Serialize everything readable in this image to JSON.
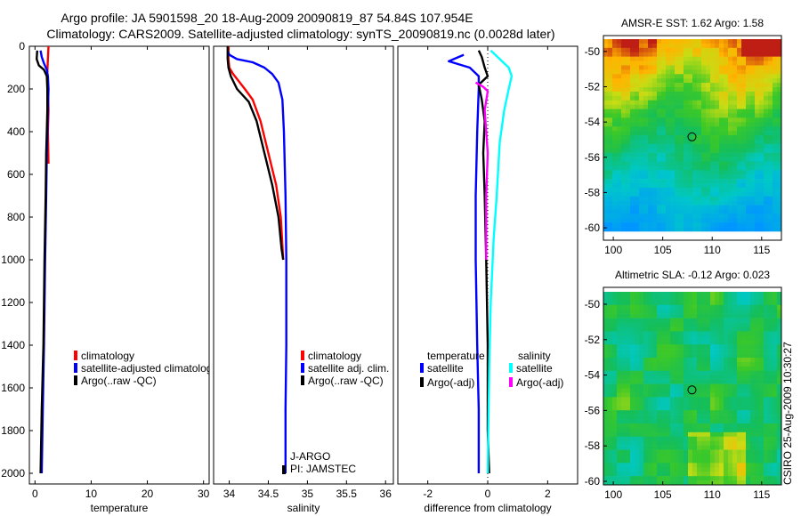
{
  "header": {
    "line1": "Argo profile: JA 5901598_20 18-Aug-2009 20090819_87 54.84S 107.954E",
    "line2": "Climatology: CARS2009. Satellite-adjusted climatology: synTS_20090819.nc (0.0028d later)"
  },
  "colors": {
    "climatology": "#ff0000",
    "satellite": "#0000ff",
    "argo": "#000000",
    "satellite_salinity": "#00ffff",
    "argo_salinity": "#ff00ff",
    "marker": "#000000"
  },
  "credit": "CSIRO 25-Aug-2009 10:30:27",
  "chart_data": [
    {
      "id": "temperature",
      "type": "line",
      "xlabel": "temperature",
      "ylabel": "",
      "xlim": [
        -1,
        31
      ],
      "ylim": [
        0,
        2050
      ],
      "y_inverted": true,
      "xticks": [
        0,
        10,
        20,
        30
      ],
      "xtick_labels": [
        "0",
        "10",
        "20",
        "30"
      ],
      "yticks": [
        0,
        200,
        400,
        600,
        800,
        1000,
        1200,
        1400,
        1600,
        1800,
        2000
      ],
      "ytick_labels": [
        "0",
        "200",
        "400",
        "600",
        "800",
        "1000",
        "1200",
        "1400",
        "1600",
        "1800",
        "2000"
      ],
      "legend": [
        "climatology",
        "satellite-adjusted climatology",
        "Argo(..raw -QC)"
      ],
      "series": [
        {
          "name": "climatology",
          "color": "#ff0000",
          "points": [
            [
              2.4,
              0
            ],
            [
              2.3,
              60
            ],
            [
              2.2,
              120
            ],
            [
              2.3,
              200
            ],
            [
              2.4,
              300
            ],
            [
              2.3,
              400
            ],
            [
              2.4,
              550
            ]
          ]
        },
        {
          "name": "satellite-adjusted climatology",
          "color": "#0000ff",
          "points": [
            [
              1.0,
              20
            ],
            [
              1.2,
              50
            ],
            [
              1.6,
              80
            ],
            [
              2.1,
              110
            ],
            [
              2.3,
              140
            ],
            [
              2.4,
              200
            ],
            [
              2.3,
              300
            ],
            [
              2.2,
              400
            ],
            [
              2.1,
              500
            ],
            [
              2.0,
              700
            ],
            [
              1.8,
              1000
            ],
            [
              1.6,
              1400
            ],
            [
              1.4,
              1700
            ],
            [
              1.2,
              2000
            ]
          ]
        },
        {
          "name": "Argo(..raw -QC)",
          "color": "#000000",
          "points": [
            [
              0.4,
              20
            ],
            [
              0.3,
              60
            ],
            [
              0.7,
              90
            ],
            [
              1.6,
              110
            ],
            [
              2.1,
              140
            ],
            [
              2.2,
              200
            ],
            [
              2.2,
              300
            ],
            [
              2.1,
              400
            ],
            [
              2.0,
              500
            ],
            [
              1.9,
              700
            ],
            [
              1.7,
              1000
            ],
            [
              1.5,
              1400
            ],
            [
              1.2,
              1700
            ],
            [
              1.0,
              2000
            ]
          ]
        }
      ]
    },
    {
      "id": "salinity",
      "type": "line",
      "xlabel": "salinity",
      "ylabel": "",
      "xlim": [
        33.8,
        36.1
      ],
      "ylim": [
        0,
        2050
      ],
      "y_inverted": true,
      "xticks": [
        34,
        34.5,
        35,
        35.5,
        36
      ],
      "xtick_labels": [
        "34",
        "34.5",
        "35",
        "35.5",
        "36"
      ],
      "legend": [
        "climatology",
        "satellite adj. clim.",
        "Argo(..raw -QC)"
      ],
      "annotation": [
        "J-ARGO",
        "PI: JAMSTEC"
      ],
      "series": [
        {
          "name": "climatology",
          "color": "#ff0000",
          "points": [
            [
              33.99,
              0
            ],
            [
              33.99,
              60
            ],
            [
              34.0,
              100
            ],
            [
              34.05,
              130
            ],
            [
              34.2,
              200
            ],
            [
              34.3,
              250
            ],
            [
              34.4,
              350
            ],
            [
              34.5,
              500
            ],
            [
              34.6,
              650
            ],
            [
              34.66,
              800
            ],
            [
              34.69,
              1000
            ]
          ]
        },
        {
          "name": "satellite adj. clim.",
          "color": "#0000ff",
          "points": [
            [
              33.98,
              20
            ],
            [
              34.0,
              40
            ],
            [
              34.1,
              60
            ],
            [
              34.3,
              75
            ],
            [
              34.45,
              100
            ],
            [
              34.55,
              130
            ],
            [
              34.63,
              170
            ],
            [
              34.68,
              250
            ],
            [
              34.7,
              400
            ],
            [
              34.72,
              700
            ],
            [
              34.73,
              1000
            ],
            [
              34.73,
              1400
            ],
            [
              34.72,
              1700
            ],
            [
              34.72,
              2000
            ]
          ]
        },
        {
          "name": "Argo(..raw -QC)",
          "color": "#000000",
          "points": [
            [
              33.98,
              0
            ],
            [
              33.98,
              60
            ],
            [
              33.99,
              100
            ],
            [
              34.02,
              140
            ],
            [
              34.1,
              200
            ],
            [
              34.25,
              260
            ],
            [
              34.35,
              350
            ],
            [
              34.45,
              500
            ],
            [
              34.55,
              650
            ],
            [
              34.63,
              800
            ],
            [
              34.67,
              950
            ],
            [
              34.69,
              1000
            ]
          ]
        }
      ]
    },
    {
      "id": "difference",
      "type": "line",
      "xlabel": "difference from climatology",
      "ylabel": "",
      "xlim": [
        -3,
        3
      ],
      "ylim": [
        0,
        2050
      ],
      "y_inverted": true,
      "xticks": [
        -2,
        0,
        2
      ],
      "xtick_labels": [
        "-2",
        "0",
        "2"
      ],
      "legend_groups": [
        {
          "title": "temperature",
          "items": [
            "satellite",
            "Argo(-adj)"
          ]
        },
        {
          "title": "salinity",
          "items": [
            "satellite",
            "Argo(-adj)"
          ]
        }
      ],
      "series": [
        {
          "name": "temperature satellite",
          "color": "#0000ff",
          "points": [
            [
              -0.8,
              40
            ],
            [
              -1.3,
              70
            ],
            [
              -0.6,
              100
            ],
            [
              -0.3,
              140
            ],
            [
              -0.3,
              200
            ],
            [
              -0.35,
              400
            ],
            [
              -0.4,
              700
            ],
            [
              -0.4,
              1000
            ],
            [
              -0.35,
              1400
            ],
            [
              -0.3,
              1700
            ],
            [
              -0.3,
              2000
            ]
          ]
        },
        {
          "name": "temperature Argo(-adj)",
          "color": "#000000",
          "points": [
            [
              -0.3,
              20
            ],
            [
              -0.2,
              50
            ],
            [
              -0.1,
              100
            ],
            [
              0.0,
              140
            ],
            [
              -0.3,
              180
            ],
            [
              -0.2,
              250
            ],
            [
              -0.1,
              350
            ],
            [
              -0.15,
              500
            ],
            [
              -0.1,
              700
            ],
            [
              -0.05,
              1000
            ],
            [
              0.0,
              1400
            ],
            [
              0.0,
              1800
            ],
            [
              0.05,
              2000
            ]
          ]
        },
        {
          "name": "salinity satellite",
          "color": "#00ffff",
          "points": [
            [
              0.1,
              20
            ],
            [
              0.4,
              60
            ],
            [
              0.7,
              100
            ],
            [
              0.8,
              140
            ],
            [
              0.7,
              200
            ],
            [
              0.55,
              300
            ],
            [
              0.4,
              450
            ],
            [
              0.3,
              700
            ],
            [
              0.2,
              900
            ],
            [
              0.1,
              1200
            ],
            [
              0.05,
              1500
            ],
            [
              0.0,
              2000
            ]
          ]
        },
        {
          "name": "salinity Argo(-adj)",
          "color": "#ff00ff",
          "points": [
            [
              -0.4,
              170
            ],
            [
              -0.15,
              190
            ],
            [
              0.0,
              210
            ],
            [
              -0.1,
              300
            ],
            [
              0.0,
              500
            ],
            [
              -0.05,
              700
            ],
            [
              -0.05,
              1000
            ]
          ]
        }
      ]
    },
    {
      "id": "sst-map",
      "type": "heatmap",
      "title": "AMSR-E SST: 1.62 Argo: 1.58",
      "xlim": [
        99,
        117
      ],
      "ylim": [
        -60.2,
        -49.3
      ],
      "xticks": [
        100,
        105,
        110,
        115
      ],
      "xtick_labels": [
        "100",
        "105",
        "110",
        "115"
      ],
      "yticks": [
        -50,
        -52,
        -54,
        -56,
        -58,
        -60
      ],
      "ytick_labels": [
        "-50",
        "-52",
        "-54",
        "-56",
        "-58",
        "-60"
      ],
      "marker": {
        "lon": 107.954,
        "lat": -54.84
      }
    },
    {
      "id": "sla-map",
      "type": "heatmap",
      "title": "Altimetric SLA: -0.12 Argo: 0.023",
      "xlim": [
        99,
        117
      ],
      "ylim": [
        -60.2,
        -49.3
      ],
      "xticks": [
        100,
        105,
        110,
        115
      ],
      "xtick_labels": [
        "100",
        "105",
        "110",
        "115"
      ],
      "yticks": [
        -50,
        -52,
        -54,
        -56,
        -58,
        -60
      ],
      "ytick_labels": [
        "-50",
        "-52",
        "-54",
        "-56",
        "-58",
        "-60"
      ],
      "marker": {
        "lon": 107.954,
        "lat": -54.84
      }
    }
  ]
}
